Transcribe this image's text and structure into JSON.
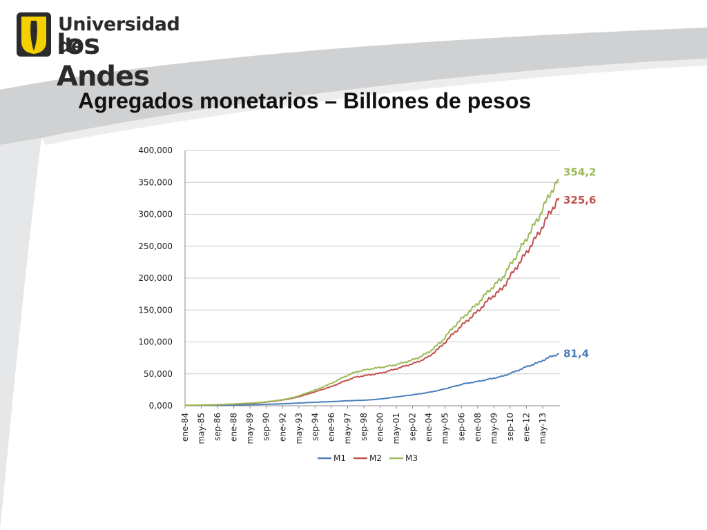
{
  "brand": {
    "line1": "Universidad de",
    "line2": "los Andes",
    "shield_color": "#f5d000"
  },
  "slide": {
    "title": "Agregados monetarios – Billones de pesos"
  },
  "chart_data": {
    "type": "line",
    "title": "",
    "xlabel": "",
    "ylabel": "",
    "ylim": [
      0,
      400000
    ],
    "yticks": [
      0,
      50000,
      100000,
      150000,
      200000,
      250000,
      300000,
      350000,
      400000
    ],
    "ytick_labels": [
      "0,000",
      "50,000",
      "100,000",
      "150,000",
      "200,000",
      "250,000",
      "300,000",
      "350,000",
      "400,000"
    ],
    "x_start": "ene-84",
    "x_end": "sep-14",
    "xtick_labels": [
      "ene-84",
      "may-85",
      "sep-86",
      "ene-88",
      "may-89",
      "sep-90",
      "ene-92",
      "may-93",
      "sep-94",
      "ene-96",
      "may-97",
      "sep-98",
      "ene-00",
      "may-01",
      "sep-02",
      "ene-04",
      "may-05",
      "sep-06",
      "ene-08",
      "may-09",
      "sep-10",
      "ene-12",
      "may-13"
    ],
    "grid": true,
    "legend_position": "bottom",
    "series": [
      {
        "name": "M1",
        "color": "#4a7ebb",
        "end_label": "81,4",
        "x": [
          1984.0,
          1986.0,
          1988.0,
          1990.0,
          1992.0,
          1994.0,
          1996.0,
          1997.5,
          1999.0,
          2000.0,
          2001.0,
          2002.0,
          2003.0,
          2004.0,
          2005.0,
          2006.0,
          2007.0,
          2008.0,
          2009.0,
          2010.0,
          2011.0,
          2012.0,
          2013.0,
          2014.0,
          2014.67
        ],
        "values": [
          500,
          800,
          1300,
          2000,
          3000,
          5000,
          6500,
          8000,
          9000,
          10500,
          13000,
          15500,
          18000,
          21000,
          25000,
          30000,
          35000,
          38000,
          42000,
          46000,
          53000,
          61000,
          68000,
          77000,
          81400
        ]
      },
      {
        "name": "M2",
        "color": "#c0504d",
        "end_label": "325,6",
        "x": [
          1984.0,
          1986.0,
          1988.0,
          1990.0,
          1991.0,
          1992.0,
          1993.0,
          1994.0,
          1995.0,
          1996.0,
          1997.0,
          1998.0,
          1999.0,
          2000.0,
          2001.0,
          2002.0,
          2003.0,
          2004.0,
          2005.0,
          2006.0,
          2007.0,
          2008.0,
          2009.0,
          2010.0,
          2011.0,
          2012.0,
          2013.0,
          2014.0,
          2014.67
        ],
        "values": [
          700,
          1300,
          2500,
          4500,
          6500,
          9000,
          12500,
          18000,
          24000,
          30000,
          38000,
          45000,
          48000,
          51000,
          56000,
          62000,
          68000,
          77000,
          93000,
          113000,
          131000,
          148000,
          168000,
          183000,
          212000,
          240000,
          270000,
          305000,
          325600
        ]
      },
      {
        "name": "M3",
        "color": "#9bbb59",
        "end_label": "354,2",
        "x": [
          1984.0,
          1986.0,
          1988.0,
          1990.0,
          1991.0,
          1992.0,
          1993.0,
          1994.0,
          1995.0,
          1996.0,
          1997.0,
          1998.0,
          1999.0,
          2000.0,
          2001.0,
          2002.0,
          2003.0,
          2004.0,
          2005.0,
          2006.0,
          2007.0,
          2008.0,
          2009.0,
          2010.0,
          2011.0,
          2012.0,
          2013.0,
          2014.0,
          2014.67
        ],
        "values": [
          800,
          1400,
          2700,
          5000,
          7000,
          9500,
          13500,
          20000,
          27000,
          35000,
          45000,
          53000,
          57000,
          60000,
          63000,
          68000,
          74000,
          84000,
          100000,
          123000,
          142000,
          160000,
          182000,
          200000,
          230000,
          262000,
          295000,
          335000,
          354200
        ]
      }
    ]
  }
}
